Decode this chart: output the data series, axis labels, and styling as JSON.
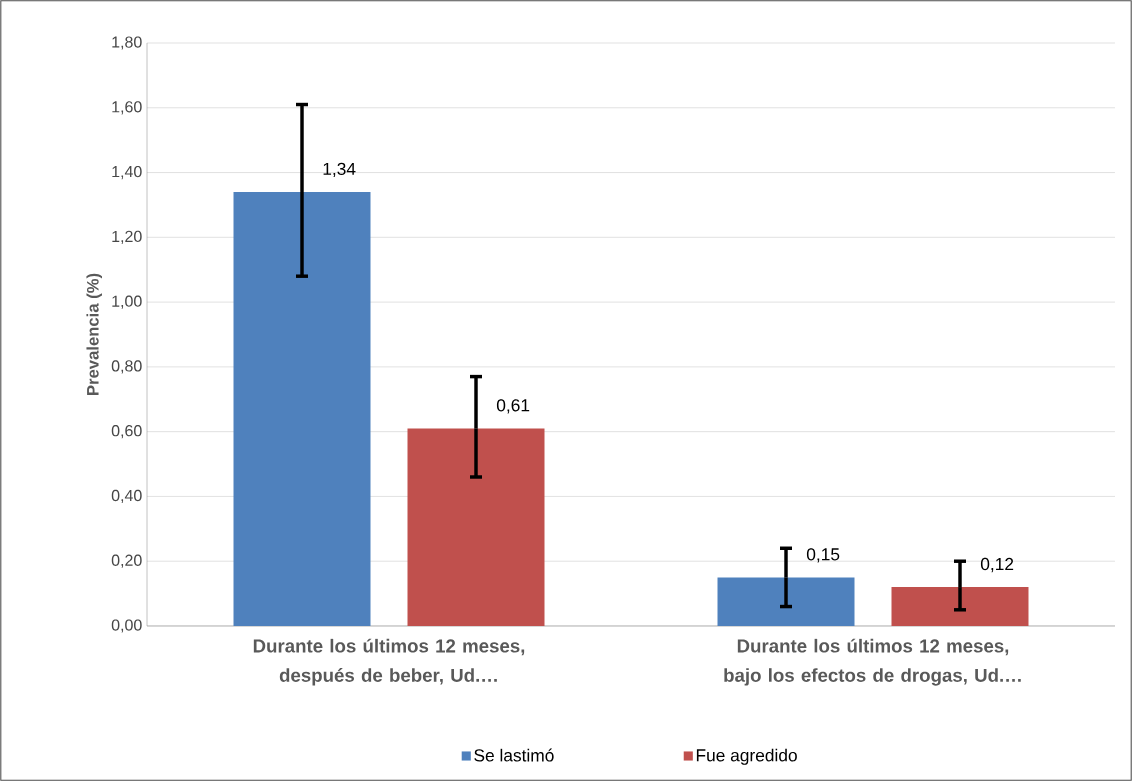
{
  "chart_data": {
    "type": "bar",
    "ylabel": "Prevalencia (%)",
    "categories": [
      "Durante los últimos 12 meses, después de beber, Ud.…",
      "Durante los últimos 12 meses, bajo los efectos de drogas, Ud.…"
    ],
    "series": [
      {
        "name": "Se lastimó",
        "color": "#4f81bd",
        "values": [
          1.34,
          0.15
        ],
        "errors": [
          [
            1.08,
            1.61
          ],
          [
            0.06,
            0.24
          ]
        ],
        "value_labels": [
          "1,34",
          "0,15"
        ]
      },
      {
        "name": "Fue agredido",
        "color": "#c0504d",
        "values": [
          0.61,
          0.12
        ],
        "errors": [
          [
            0.46,
            0.77
          ],
          [
            0.05,
            0.2
          ]
        ],
        "value_labels": [
          "0,61",
          "0,12"
        ]
      }
    ],
    "ylim": [
      0,
      1.8
    ],
    "yticks": [
      {
        "value": 0,
        "label": "0,00"
      },
      {
        "value": 0.2,
        "label": "0,20"
      },
      {
        "value": 0.4,
        "label": "0,40"
      },
      {
        "value": 0.6,
        "label": "0,60"
      },
      {
        "value": 0.8,
        "label": "0,80"
      },
      {
        "value": 1.0,
        "label": "1,00"
      },
      {
        "value": 1.2,
        "label": "1,20"
      },
      {
        "value": 1.4,
        "label": "1,40"
      },
      {
        "value": 1.6,
        "label": "1,60"
      },
      {
        "value": 1.8,
        "label": "1,80"
      }
    ],
    "grid": "y",
    "legend": "bottom"
  }
}
